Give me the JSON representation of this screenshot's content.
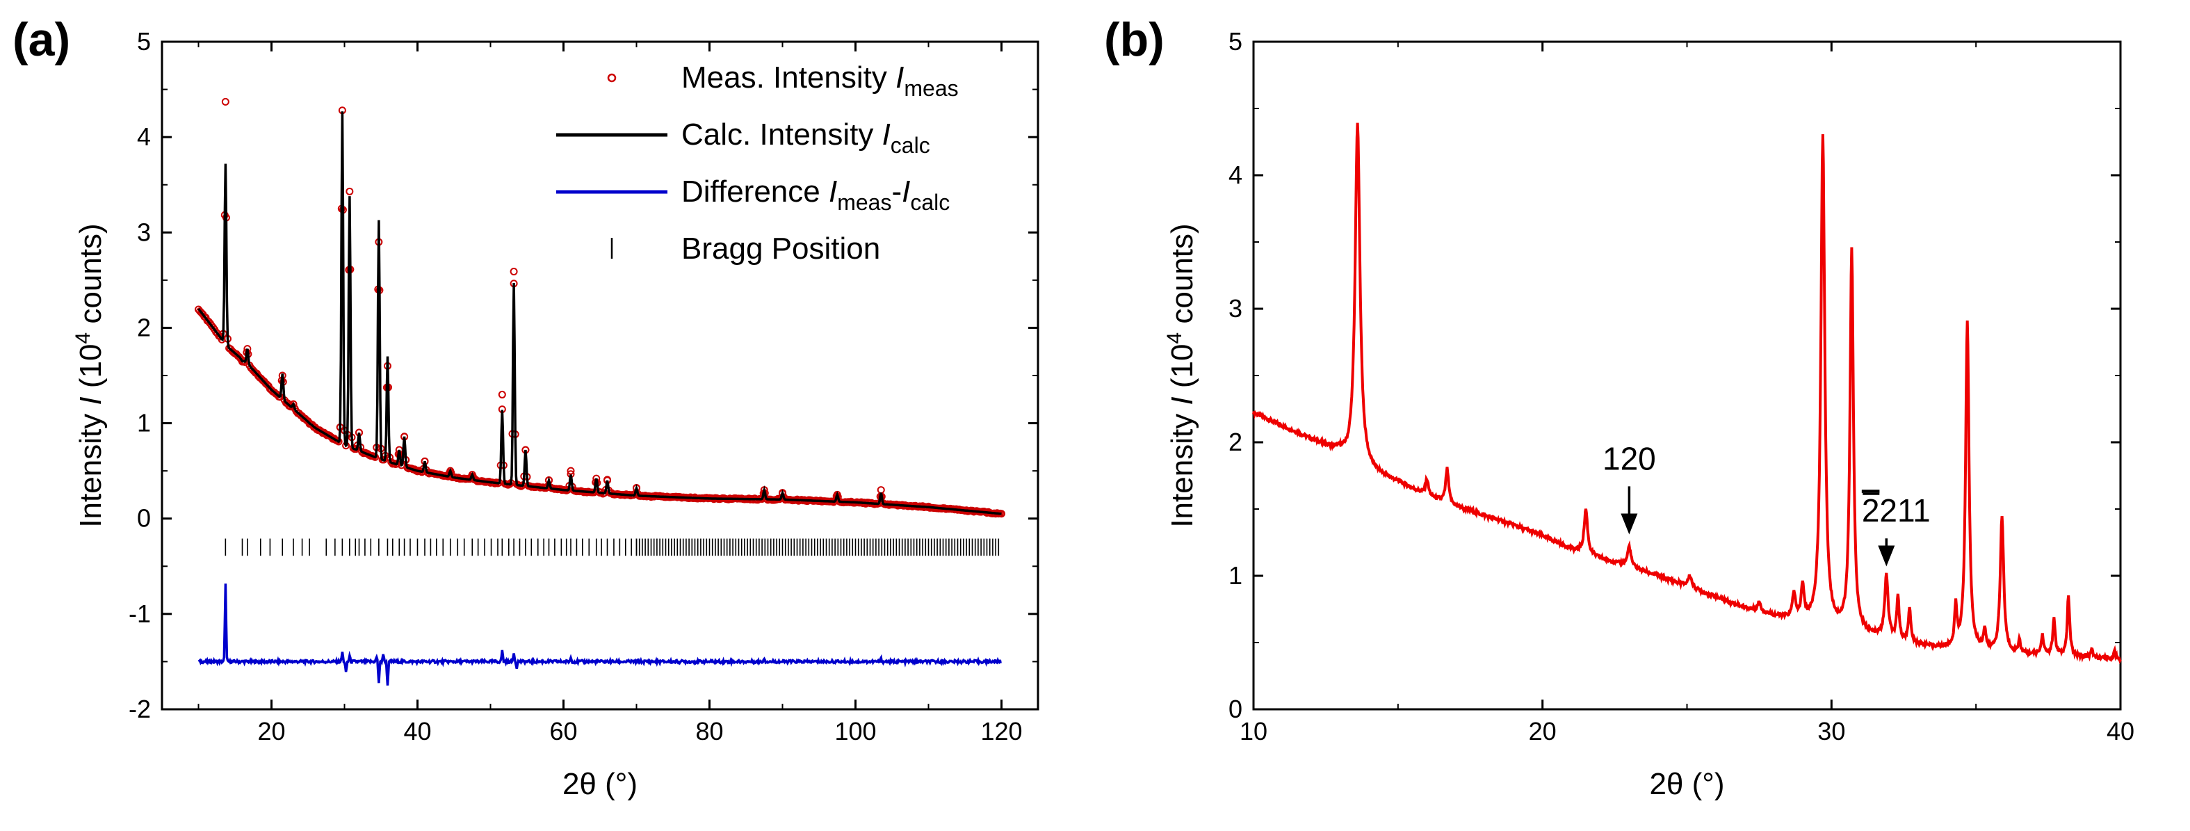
{
  "chart_data": [
    {
      "panel_label": "(a)",
      "type": "line",
      "xlabel": "2θ (°)",
      "ylabel": "Intensity I (10^4 counts)",
      "ylabel_parts": [
        "Intensity ",
        "I",
        " (10",
        "4",
        " counts)"
      ],
      "xlim": [
        5,
        125
      ],
      "ylim": [
        -2,
        5
      ],
      "xticks": [
        20,
        40,
        60,
        80,
        100,
        120
      ],
      "yticks": [
        -2,
        -1,
        0,
        1,
        2,
        3,
        4,
        5
      ],
      "grid": false,
      "legend_position": "top-right",
      "legend": [
        {
          "label": "Meas. Intensity I_meas",
          "parts": [
            "Meas. Intensity ",
            "I",
            "meas"
          ],
          "marker": "open-circle",
          "color": "#cc0000"
        },
        {
          "label": "Calc. Intensity I_calc",
          "parts": [
            "Calc. Intensity ",
            "I",
            "calc"
          ],
          "marker": "line",
          "color": "#000000"
        },
        {
          "label": "Difference I_meas-I_calc",
          "parts": [
            "Difference ",
            "I",
            "meas",
            "-",
            "I",
            "calc"
          ],
          "marker": "line",
          "color": "#0000cc"
        },
        {
          "label": "Bragg Position",
          "parts": [
            "Bragg Position"
          ],
          "marker": "tick",
          "color": "#000000"
        }
      ],
      "background": [
        [
          10,
          2.2
        ],
        [
          12,
          2.0
        ],
        [
          14,
          1.8
        ],
        [
          17,
          1.6
        ],
        [
          20,
          1.35
        ],
        [
          23,
          1.15
        ],
        [
          26,
          0.95
        ],
        [
          30,
          0.77
        ],
        [
          35,
          0.62
        ],
        [
          40,
          0.5
        ],
        [
          45,
          0.43
        ],
        [
          50,
          0.38
        ],
        [
          60,
          0.3
        ],
        [
          70,
          0.24
        ],
        [
          80,
          0.21
        ],
        [
          90,
          0.2
        ],
        [
          100,
          0.17
        ],
        [
          110,
          0.12
        ],
        [
          120,
          0.05
        ]
      ],
      "peaks": [
        {
          "x": 13.7,
          "calc": 3.72,
          "meas": 4.37
        },
        {
          "x": 16.0,
          "calc": 1.65,
          "meas": 1.65
        },
        {
          "x": 16.7,
          "calc": 1.78,
          "meas": 1.78
        },
        {
          "x": 21.5,
          "calc": 1.52,
          "meas": 1.5
        },
        {
          "x": 23.0,
          "calc": 1.2,
          "meas": 1.2
        },
        {
          "x": 25.2,
          "calc": 1.0,
          "meas": 1.0
        },
        {
          "x": 29.7,
          "calc": 4.27,
          "meas": 4.28
        },
        {
          "x": 30.7,
          "calc": 3.38,
          "meas": 3.43
        },
        {
          "x": 32.0,
          "calc": 0.9,
          "meas": 0.9
        },
        {
          "x": 34.7,
          "calc": 3.13,
          "meas": 2.9
        },
        {
          "x": 35.9,
          "calc": 1.7,
          "meas": 1.6
        },
        {
          "x": 37.5,
          "calc": 0.72,
          "meas": 0.72
        },
        {
          "x": 38.2,
          "calc": 0.86,
          "meas": 0.86
        },
        {
          "x": 41.0,
          "calc": 0.6,
          "meas": 0.6
        },
        {
          "x": 44.5,
          "calc": 0.5,
          "meas": 0.5
        },
        {
          "x": 47.5,
          "calc": 0.46,
          "meas": 0.46
        },
        {
          "x": 51.6,
          "calc": 1.14,
          "meas": 1.3
        },
        {
          "x": 53.2,
          "calc": 2.47,
          "meas": 2.59
        },
        {
          "x": 54.8,
          "calc": 0.72,
          "meas": 0.72
        },
        {
          "x": 58.0,
          "calc": 0.4,
          "meas": 0.4
        },
        {
          "x": 61.0,
          "calc": 0.46,
          "meas": 0.5
        },
        {
          "x": 64.5,
          "calc": 0.42,
          "meas": 0.42
        },
        {
          "x": 66.0,
          "calc": 0.4,
          "meas": 0.4
        },
        {
          "x": 70.0,
          "calc": 0.32,
          "meas": 0.32
        },
        {
          "x": 87.5,
          "calc": 0.3,
          "meas": 0.3
        },
        {
          "x": 90.0,
          "calc": 0.27,
          "meas": 0.27
        },
        {
          "x": 97.5,
          "calc": 0.25,
          "meas": 0.25
        },
        {
          "x": 103.5,
          "calc": 0.27,
          "meas": 0.3
        }
      ],
      "bragg_y": -0.3,
      "bragg_positions": [
        13.7,
        16.0,
        16.7,
        18.5,
        19.8,
        21.5,
        23.0,
        24.2,
        25.2,
        27.5,
        28.7,
        29.7,
        30.7,
        31.5,
        32.0,
        32.8,
        33.6,
        34.7,
        35.9,
        36.6,
        37.5,
        38.2,
        39.0,
        40.0,
        41.0,
        41.8,
        42.6,
        43.5,
        44.5,
        45.5,
        46.4,
        47.5,
        48.3,
        49.2,
        50.1,
        51.0,
        51.6,
        52.5,
        53.2,
        54.0,
        54.8,
        55.6,
        56.5,
        57.3,
        58.0,
        58.8,
        59.7,
        60.4,
        61.0,
        61.8,
        62.6,
        63.5,
        64.5,
        65.2,
        66.0,
        66.9,
        67.7,
        68.5,
        69.3,
        70.0
      ],
      "bragg_dense_range": [
        70,
        120
      ],
      "difference_offset": -1.5,
      "difference_spikes": [
        [
          13.7,
          0.83
        ],
        [
          29.7,
          0.1
        ],
        [
          30.2,
          -0.12
        ],
        [
          30.7,
          0.06
        ],
        [
          34.4,
          0.05
        ],
        [
          34.7,
          -0.22
        ],
        [
          35.3,
          0.08
        ],
        [
          35.9,
          -0.25
        ],
        [
          51.6,
          0.12
        ],
        [
          53.2,
          0.1
        ],
        [
          53.6,
          -0.06
        ],
        [
          61.0,
          0.04
        ],
        [
          87.5,
          0.04
        ],
        [
          103.5,
          0.03
        ]
      ]
    },
    {
      "panel_label": "(b)",
      "type": "line",
      "xlabel": "2θ (°)",
      "ylabel": "Intensity I (10^4 counts)",
      "ylabel_parts": [
        "Intensity ",
        "I",
        " (10",
        "4",
        " counts)"
      ],
      "xlim": [
        10,
        40
      ],
      "ylim": [
        0,
        5
      ],
      "xticks": [
        10,
        20,
        30,
        40
      ],
      "yticks": [
        0,
        1,
        2,
        3,
        4,
        5
      ],
      "grid": false,
      "series": [
        {
          "color": "#ee0000"
        }
      ],
      "background": [
        [
          10,
          2.22
        ],
        [
          11,
          2.12
        ],
        [
          12,
          2.02
        ],
        [
          13,
          1.92
        ],
        [
          13.3,
          1.85
        ],
        [
          14,
          1.78
        ],
        [
          15,
          1.7
        ],
        [
          16,
          1.6
        ],
        [
          17,
          1.52
        ],
        [
          18,
          1.45
        ],
        [
          19,
          1.38
        ],
        [
          20,
          1.3
        ],
        [
          21,
          1.2
        ],
        [
          22,
          1.13
        ],
        [
          23,
          1.07
        ],
        [
          24,
          1.0
        ],
        [
          25,
          0.92
        ],
        [
          26,
          0.84
        ],
        [
          27,
          0.76
        ],
        [
          28,
          0.7
        ],
        [
          29,
          0.65
        ],
        [
          30,
          0.6
        ],
        [
          31,
          0.56
        ],
        [
          32,
          0.52
        ],
        [
          33,
          0.48
        ],
        [
          34,
          0.45
        ],
        [
          35,
          0.43
        ],
        [
          36,
          0.42
        ],
        [
          37,
          0.41
        ],
        [
          38,
          0.4
        ],
        [
          39,
          0.39
        ],
        [
          40,
          0.37
        ]
      ],
      "peaks": [
        {
          "x": 13.6,
          "y": 4.38,
          "w": 0.1
        },
        {
          "x": 16.0,
          "y": 1.72,
          "w": 0.06
        },
        {
          "x": 16.7,
          "y": 1.8,
          "w": 0.06
        },
        {
          "x": 21.5,
          "y": 1.5,
          "w": 0.07
        },
        {
          "x": 23.0,
          "y": 1.22,
          "w": 0.07
        },
        {
          "x": 25.1,
          "y": 1.0,
          "w": 0.08
        },
        {
          "x": 27.5,
          "y": 0.8,
          "w": 0.06
        },
        {
          "x": 28.7,
          "y": 0.86,
          "w": 0.06
        },
        {
          "x": 29.0,
          "y": 0.9,
          "w": 0.06
        },
        {
          "x": 29.7,
          "y": 4.29,
          "w": 0.08
        },
        {
          "x": 30.7,
          "y": 3.43,
          "w": 0.07
        },
        {
          "x": 31.9,
          "y": 0.99,
          "w": 0.07
        },
        {
          "x": 32.3,
          "y": 0.83,
          "w": 0.05
        },
        {
          "x": 32.7,
          "y": 0.75,
          "w": 0.05
        },
        {
          "x": 34.3,
          "y": 0.74,
          "w": 0.05
        },
        {
          "x": 34.7,
          "y": 2.91,
          "w": 0.07
        },
        {
          "x": 35.3,
          "y": 0.58,
          "w": 0.05
        },
        {
          "x": 35.9,
          "y": 1.44,
          "w": 0.07
        },
        {
          "x": 36.5,
          "y": 0.52,
          "w": 0.04
        },
        {
          "x": 37.3,
          "y": 0.55,
          "w": 0.05
        },
        {
          "x": 37.7,
          "y": 0.67,
          "w": 0.05
        },
        {
          "x": 38.2,
          "y": 0.85,
          "w": 0.05
        },
        {
          "x": 39.0,
          "y": 0.45,
          "w": 0.04
        },
        {
          "x": 39.8,
          "y": 0.44,
          "w": 0.04
        }
      ],
      "annotations": [
        {
          "text": "120",
          "overbar": "",
          "x": 23.0,
          "arrow_from_y": 1.67,
          "arrow_to_y": 1.31
        },
        {
          "text": "211",
          "overbar": "2",
          "x": 31.9,
          "arrow_from_y": 1.28,
          "arrow_to_y": 1.07
        }
      ]
    }
  ]
}
